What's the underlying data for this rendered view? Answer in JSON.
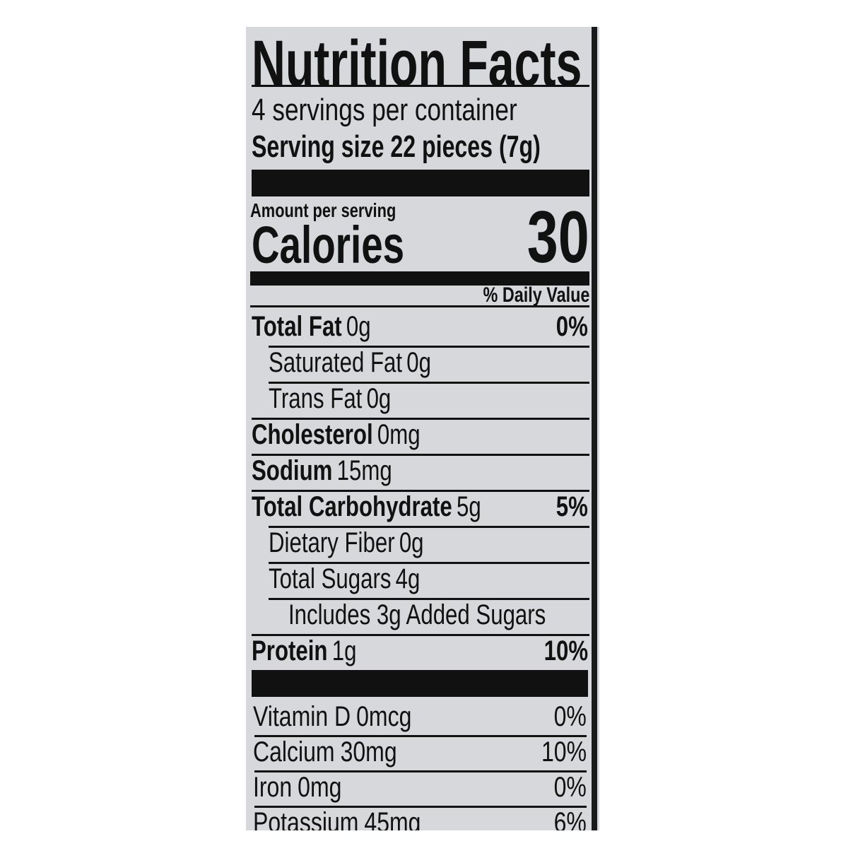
{
  "title": "Nutrition Facts",
  "servings_per_container": "4 servings per container",
  "serving_size": "Serving size  22 pieces (7g)",
  "amount_per_serving": "Amount per serving",
  "calories_label": "Calories",
  "calories_value": "30",
  "daily_value_header": "% Daily Value",
  "nutrients": [
    {
      "name": "Total Fat",
      "amount": "0g",
      "dv": "0%",
      "bold": true,
      "indent": 0
    },
    {
      "name": "Saturated Fat",
      "amount": "0g",
      "dv": "",
      "bold": false,
      "indent": 1
    },
    {
      "name": "Trans Fat",
      "amount": "0g",
      "dv": "",
      "bold": false,
      "indent": 1
    },
    {
      "name": "Cholesterol",
      "amount": "0mg",
      "dv": "",
      "bold": true,
      "indent": 0
    },
    {
      "name": "Sodium",
      "amount": "15mg",
      "dv": "",
      "bold": true,
      "indent": 0
    },
    {
      "name": "Total Carbohydrate",
      "amount": "5g",
      "dv": "5%",
      "bold": true,
      "indent": 0
    },
    {
      "name": "Dietary Fiber",
      "amount": "0g",
      "dv": "",
      "bold": false,
      "indent": 1
    },
    {
      "name": "Total Sugars",
      "amount": "4g",
      "dv": "",
      "bold": false,
      "indent": 1
    },
    {
      "name": "Includes 3g Added Sugars",
      "amount": "",
      "dv": "",
      "bold": false,
      "indent": 2
    },
    {
      "name": "Protein",
      "amount": "1g",
      "dv": "10%",
      "bold": true,
      "indent": 0
    }
  ],
  "vitamins": [
    {
      "name": "Vitamin D",
      "amount": "0mcg",
      "dv": "0%"
    },
    {
      "name": "Calcium",
      "amount": "30mg",
      "dv": "10%"
    },
    {
      "name": "Iron",
      "amount": "0mg",
      "dv": "0%"
    },
    {
      "name": "Potassium",
      "amount": "45mg",
      "dv": "6%"
    }
  ]
}
